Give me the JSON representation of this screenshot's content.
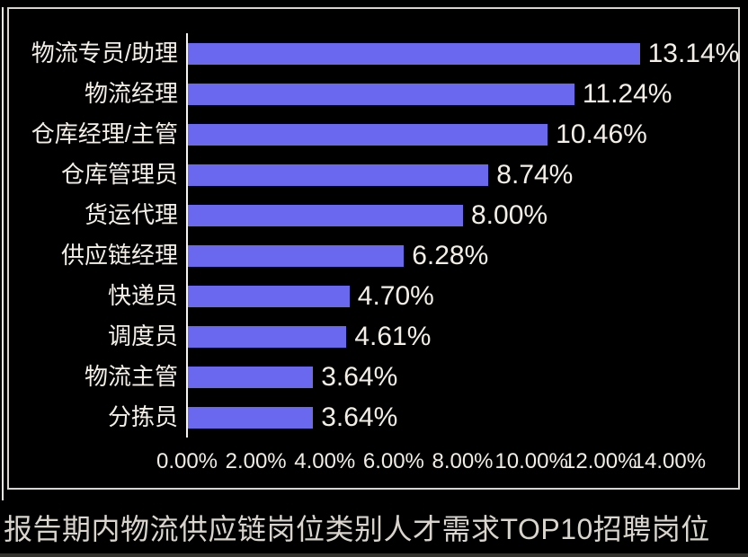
{
  "chart_data": {
    "type": "bar",
    "orientation": "horizontal",
    "title": "报告期内物流供应链岗位类别人才需求TOP10招聘岗位",
    "categories": [
      "物流专员/助理",
      "物流经理",
      "仓库经理/主管",
      "仓库管理员",
      "货运代理",
      "供应链经理",
      "快递员",
      "调度员",
      "物流主管",
      "分拣员"
    ],
    "values": [
      13.14,
      11.24,
      10.46,
      8.74,
      8.0,
      6.28,
      4.7,
      4.61,
      3.64,
      3.64
    ],
    "value_labels": [
      "13.14%",
      "11.24%",
      "10.46%",
      "8.74%",
      "8.00%",
      "6.28%",
      "4.70%",
      "4.61%",
      "3.64%",
      "3.64%"
    ],
    "x_ticks": [
      "0.00%",
      "2.00%",
      "4.00%",
      "6.00%",
      "8.00%",
      "10.00%",
      "12.00%",
      "14.00%"
    ],
    "x_tick_values": [
      0,
      2,
      4,
      6,
      8,
      10,
      12,
      14
    ],
    "xlim": [
      0,
      16
    ],
    "xlabel": "",
    "ylabel": "",
    "grid": false,
    "legend": false
  },
  "colors": {
    "background": "#000000",
    "bar": "#6A68EE",
    "category_text": "#F3EFE7",
    "value_text": "#F3EFE7",
    "tick_text": "#F1EDE4",
    "axis_line": "#F7F4EE",
    "frame_border": "#D8D5CF",
    "title_text": "#D9D5CD"
  }
}
